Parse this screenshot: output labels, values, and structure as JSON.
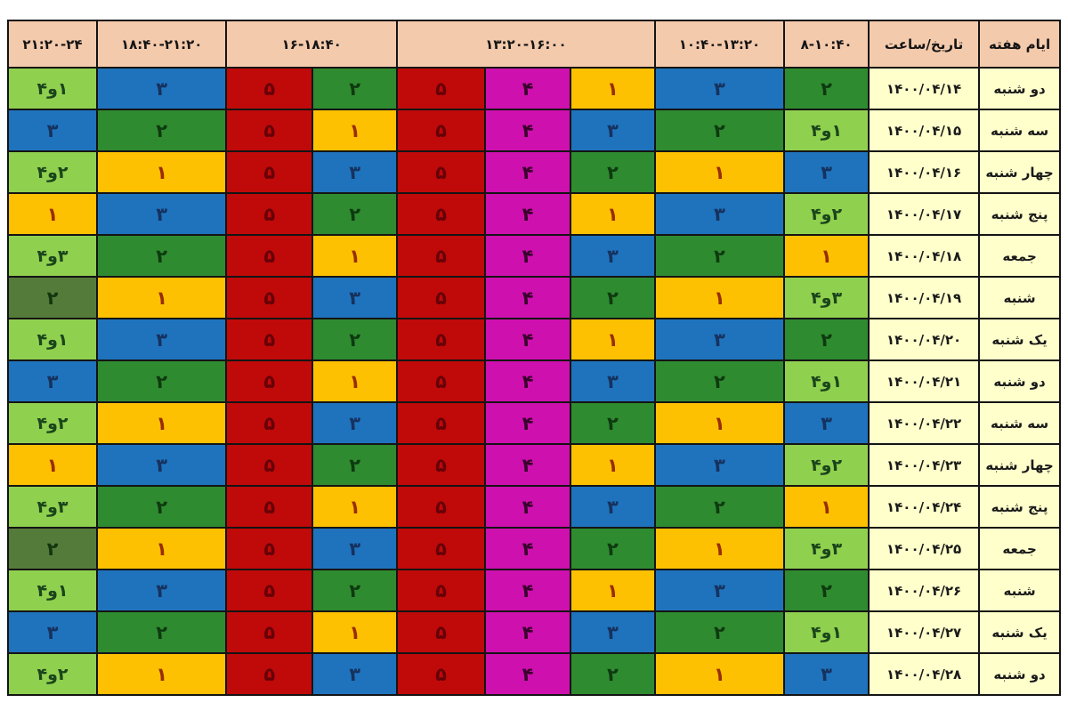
{
  "chart_data": {
    "type": "table",
    "description_visible_text_only": true,
    "header": {
      "days_of_week": "ایام هفته",
      "date_hour": "تاریخ/ساعت",
      "time_slots": [
        {
          "label": "۸-۱۰:۴۰",
          "span": 1
        },
        {
          "label": "۱۰:۴۰-۱۳:۲۰",
          "span": 1
        },
        {
          "label": "۱۳:۲۰-۱۶:۰۰",
          "span": 3
        },
        {
          "label": "۱۶-۱۸:۴۰",
          "span": 2
        },
        {
          "label": "۱۸:۴۰-۲۱:۲۰",
          "span": 1
        },
        {
          "label": "۲۱:۲۰-۲۴",
          "span": 1
        }
      ]
    },
    "palette": {
      "yellow": {
        "bg": "#fdc101",
        "text": "#992d00"
      },
      "green": {
        "bg": "#2f8b30",
        "text": "#0e3a10"
      },
      "olive": {
        "bg": "#557b3a",
        "text": "#12360e"
      },
      "blue": {
        "bg": "#1f73bd",
        "text": "#16325e"
      },
      "red": {
        "bg": "#c00909",
        "text": "#650007"
      },
      "magenta": {
        "bg": "#ce10ae",
        "text": "#38002c"
      },
      "lightgreen": {
        "bg": "#90d04f",
        "text": "#1b451b"
      },
      "header_bg": "#f4caac",
      "header_text": "#141414",
      "date_bg": "#ffffcc",
      "border": "#141414"
    },
    "rows": [
      {
        "day": "دو شنبه",
        "date": "۱۴۰۰/۰۴/۱۴",
        "cells": [
          {
            "v": "۲",
            "c": "green"
          },
          {
            "v": "۳",
            "c": "blue"
          },
          {
            "v": "۱",
            "c": "yellow"
          },
          {
            "v": "۴",
            "c": "magenta"
          },
          {
            "v": "۵",
            "c": "red"
          },
          {
            "v": "۲",
            "c": "green"
          },
          {
            "v": "۵",
            "c": "red"
          },
          {
            "v": "۳",
            "c": "blue"
          },
          {
            "v": "۱و۴",
            "c": "lightgreen"
          }
        ]
      },
      {
        "day": "سه شنبه",
        "date": "۱۴۰۰/۰۴/۱۵",
        "cells": [
          {
            "v": "۱و۴",
            "c": "lightgreen"
          },
          {
            "v": "۲",
            "c": "green"
          },
          {
            "v": "۳",
            "c": "blue"
          },
          {
            "v": "۴",
            "c": "magenta"
          },
          {
            "v": "۵",
            "c": "red"
          },
          {
            "v": "۱",
            "c": "yellow"
          },
          {
            "v": "۵",
            "c": "red"
          },
          {
            "v": "۲",
            "c": "green"
          },
          {
            "v": "۳",
            "c": "blue"
          }
        ]
      },
      {
        "day": "چهار شنبه",
        "date": "۱۴۰۰/۰۴/۱۶",
        "cells": [
          {
            "v": "۳",
            "c": "blue"
          },
          {
            "v": "۱",
            "c": "yellow"
          },
          {
            "v": "۲",
            "c": "green"
          },
          {
            "v": "۴",
            "c": "magenta"
          },
          {
            "v": "۵",
            "c": "red"
          },
          {
            "v": "۳",
            "c": "blue"
          },
          {
            "v": "۵",
            "c": "red"
          },
          {
            "v": "۱",
            "c": "yellow"
          },
          {
            "v": "۲و۴",
            "c": "lightgreen"
          }
        ]
      },
      {
        "day": "پنج شنبه",
        "date": "۱۴۰۰/۰۴/۱۷",
        "cells": [
          {
            "v": "۲و۴",
            "c": "lightgreen"
          },
          {
            "v": "۳",
            "c": "blue"
          },
          {
            "v": "۱",
            "c": "yellow"
          },
          {
            "v": "۴",
            "c": "magenta"
          },
          {
            "v": "۵",
            "c": "red"
          },
          {
            "v": "۲",
            "c": "green"
          },
          {
            "v": "۵",
            "c": "red"
          },
          {
            "v": "۳",
            "c": "blue"
          },
          {
            "v": "۱",
            "c": "yellow"
          }
        ]
      },
      {
        "day": "جمعه",
        "date": "۱۴۰۰/۰۴/۱۸",
        "cells": [
          {
            "v": "۱",
            "c": "yellow"
          },
          {
            "v": "۲",
            "c": "green"
          },
          {
            "v": "۳",
            "c": "blue"
          },
          {
            "v": "۴",
            "c": "magenta"
          },
          {
            "v": "۵",
            "c": "red"
          },
          {
            "v": "۱",
            "c": "yellow"
          },
          {
            "v": "۵",
            "c": "red"
          },
          {
            "v": "۲",
            "c": "green"
          },
          {
            "v": "۳و۴",
            "c": "lightgreen"
          }
        ]
      },
      {
        "day": "شنبه",
        "date": "۱۴۰۰/۰۴/۱۹",
        "cells": [
          {
            "v": "۳و۴",
            "c": "lightgreen"
          },
          {
            "v": "۱",
            "c": "yellow"
          },
          {
            "v": "۲",
            "c": "green"
          },
          {
            "v": "۴",
            "c": "magenta"
          },
          {
            "v": "۵",
            "c": "red"
          },
          {
            "v": "۳",
            "c": "blue"
          },
          {
            "v": "۵",
            "c": "red"
          },
          {
            "v": "۱",
            "c": "yellow"
          },
          {
            "v": "۲",
            "c": "olive"
          }
        ]
      },
      {
        "day": "یک شنبه",
        "date": "۱۴۰۰/۰۴/۲۰",
        "cells": [
          {
            "v": "۲",
            "c": "green"
          },
          {
            "v": "۳",
            "c": "blue"
          },
          {
            "v": "۱",
            "c": "yellow"
          },
          {
            "v": "۴",
            "c": "magenta"
          },
          {
            "v": "۵",
            "c": "red"
          },
          {
            "v": "۲",
            "c": "green"
          },
          {
            "v": "۵",
            "c": "red"
          },
          {
            "v": "۳",
            "c": "blue"
          },
          {
            "v": "۱و۴",
            "c": "lightgreen"
          }
        ]
      },
      {
        "day": "دو شنبه",
        "date": "۱۴۰۰/۰۴/۲۱",
        "cells": [
          {
            "v": "۱و۴",
            "c": "lightgreen"
          },
          {
            "v": "۲",
            "c": "green"
          },
          {
            "v": "۳",
            "c": "blue"
          },
          {
            "v": "۴",
            "c": "magenta"
          },
          {
            "v": "۵",
            "c": "red"
          },
          {
            "v": "۱",
            "c": "yellow"
          },
          {
            "v": "۵",
            "c": "red"
          },
          {
            "v": "۲",
            "c": "green"
          },
          {
            "v": "۳",
            "c": "blue"
          }
        ]
      },
      {
        "day": "سه شنبه",
        "date": "۱۴۰۰/۰۴/۲۲",
        "cells": [
          {
            "v": "۳",
            "c": "blue"
          },
          {
            "v": "۱",
            "c": "yellow"
          },
          {
            "v": "۲",
            "c": "green"
          },
          {
            "v": "۴",
            "c": "magenta"
          },
          {
            "v": "۵",
            "c": "red"
          },
          {
            "v": "۳",
            "c": "blue"
          },
          {
            "v": "۵",
            "c": "red"
          },
          {
            "v": "۱",
            "c": "yellow"
          },
          {
            "v": "۲و۴",
            "c": "lightgreen"
          }
        ]
      },
      {
        "day": "چهار شنبه",
        "date": "۱۴۰۰/۰۴/۲۳",
        "cells": [
          {
            "v": "۲و۴",
            "c": "lightgreen"
          },
          {
            "v": "۳",
            "c": "blue"
          },
          {
            "v": "۱",
            "c": "yellow"
          },
          {
            "v": "۴",
            "c": "magenta"
          },
          {
            "v": "۵",
            "c": "red"
          },
          {
            "v": "۲",
            "c": "green"
          },
          {
            "v": "۵",
            "c": "red"
          },
          {
            "v": "۳",
            "c": "blue"
          },
          {
            "v": "۱",
            "c": "yellow"
          }
        ]
      },
      {
        "day": "پنج شنبه",
        "date": "۱۴۰۰/۰۴/۲۴",
        "cells": [
          {
            "v": "۱",
            "c": "yellow"
          },
          {
            "v": "۲",
            "c": "green"
          },
          {
            "v": "۳",
            "c": "blue"
          },
          {
            "v": "۴",
            "c": "magenta"
          },
          {
            "v": "۵",
            "c": "red"
          },
          {
            "v": "۱",
            "c": "yellow"
          },
          {
            "v": "۵",
            "c": "red"
          },
          {
            "v": "۲",
            "c": "green"
          },
          {
            "v": "۳و۴",
            "c": "lightgreen"
          }
        ]
      },
      {
        "day": "جمعه",
        "date": "۱۴۰۰/۰۴/۲۵",
        "cells": [
          {
            "v": "۳و۴",
            "c": "lightgreen"
          },
          {
            "v": "۱",
            "c": "yellow"
          },
          {
            "v": "۲",
            "c": "green"
          },
          {
            "v": "۴",
            "c": "magenta"
          },
          {
            "v": "۵",
            "c": "red"
          },
          {
            "v": "۳",
            "c": "blue"
          },
          {
            "v": "۵",
            "c": "red"
          },
          {
            "v": "۱",
            "c": "yellow"
          },
          {
            "v": "۲",
            "c": "olive"
          }
        ]
      },
      {
        "day": "شنبه",
        "date": "۱۴۰۰/۰۴/۲۶",
        "cells": [
          {
            "v": "۲",
            "c": "green"
          },
          {
            "v": "۳",
            "c": "blue"
          },
          {
            "v": "۱",
            "c": "yellow"
          },
          {
            "v": "۴",
            "c": "magenta"
          },
          {
            "v": "۵",
            "c": "red"
          },
          {
            "v": "۲",
            "c": "green"
          },
          {
            "v": "۵",
            "c": "red"
          },
          {
            "v": "۳",
            "c": "blue"
          },
          {
            "v": "۱و۴",
            "c": "lightgreen"
          }
        ]
      },
      {
        "day": "یک شنبه",
        "date": "۱۴۰۰/۰۴/۲۷",
        "cells": [
          {
            "v": "۱و۴",
            "c": "lightgreen"
          },
          {
            "v": "۲",
            "c": "green"
          },
          {
            "v": "۳",
            "c": "blue"
          },
          {
            "v": "۴",
            "c": "magenta"
          },
          {
            "v": "۵",
            "c": "red"
          },
          {
            "v": "۱",
            "c": "yellow"
          },
          {
            "v": "۵",
            "c": "red"
          },
          {
            "v": "۲",
            "c": "green"
          },
          {
            "v": "۳",
            "c": "blue"
          }
        ]
      },
      {
        "day": "دو شنبه",
        "date": "۱۴۰۰/۰۴/۲۸",
        "cells": [
          {
            "v": "۳",
            "c": "blue"
          },
          {
            "v": "۱",
            "c": "yellow"
          },
          {
            "v": "۲",
            "c": "green"
          },
          {
            "v": "۴",
            "c": "magenta"
          },
          {
            "v": "۵",
            "c": "red"
          },
          {
            "v": "۳",
            "c": "blue"
          },
          {
            "v": "۵",
            "c": "red"
          },
          {
            "v": "۱",
            "c": "yellow"
          },
          {
            "v": "۲و۴",
            "c": "lightgreen"
          }
        ]
      }
    ]
  }
}
